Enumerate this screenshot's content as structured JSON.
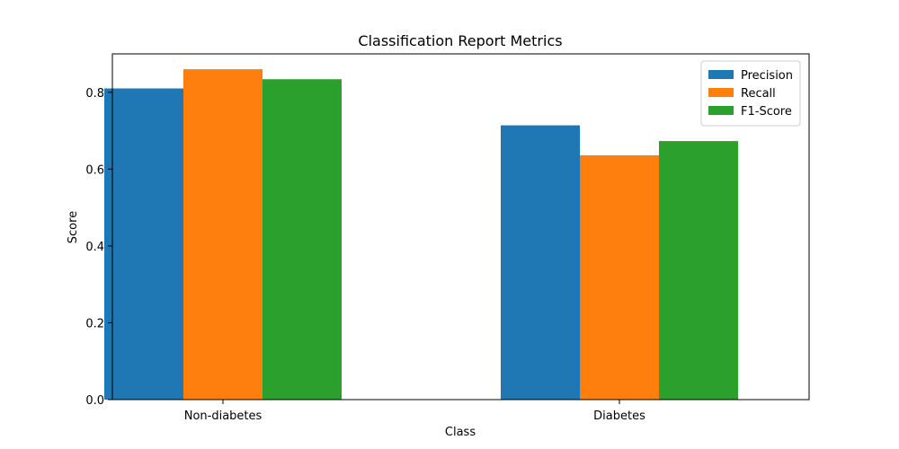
{
  "chart_data": {
    "type": "bar",
    "title": "Classification Report Metrics",
    "xlabel": "Class",
    "ylabel": "Score",
    "categories": [
      "Non-diabetes",
      "Diabetes"
    ],
    "series": [
      {
        "name": "Precision",
        "values": [
          0.81,
          0.714
        ],
        "color": "#1f77b4"
      },
      {
        "name": "Recall",
        "values": [
          0.86,
          0.636
        ],
        "color": "#ff7f0e"
      },
      {
        "name": "F1-Score",
        "values": [
          0.834,
          0.673
        ],
        "color": "#2ca02c"
      }
    ],
    "ylim": [
      0,
      0.9
    ],
    "yticks": [
      0.0,
      0.2,
      0.4,
      0.6,
      0.8
    ],
    "ytick_labels": [
      "0.0",
      "0.2",
      "0.4",
      "0.6",
      "0.8"
    ],
    "grid": false,
    "legend_position": "top-right"
  }
}
